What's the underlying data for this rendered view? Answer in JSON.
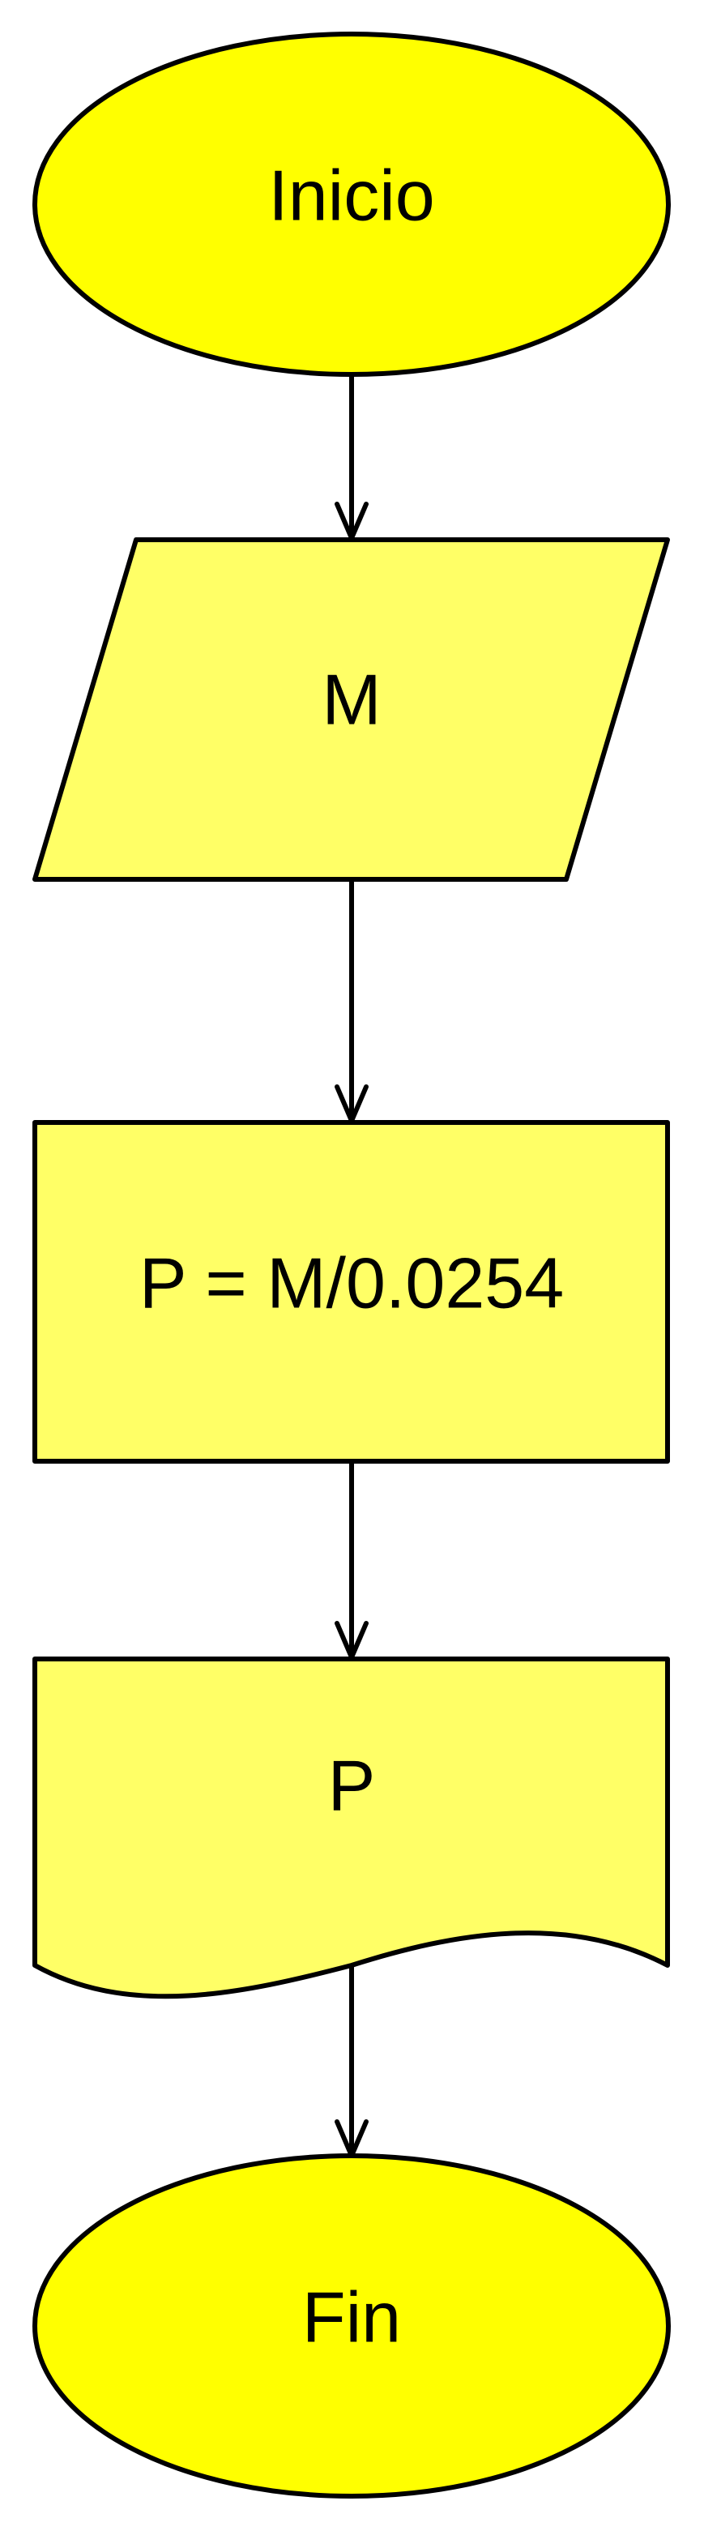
{
  "flowchart": {
    "colors": {
      "terminal_fill": "#FFFF00",
      "process_fill": "#FFFF66",
      "stroke": "#000000",
      "background": "#FFFFFF"
    },
    "nodes": [
      {
        "id": "start",
        "shape": "ellipse",
        "label": "Inicio"
      },
      {
        "id": "input",
        "shape": "parallelogram",
        "label": "M"
      },
      {
        "id": "process",
        "shape": "rectangle",
        "label": "P = M/0.0254"
      },
      {
        "id": "output",
        "shape": "document",
        "label": "P"
      },
      {
        "id": "end",
        "shape": "ellipse",
        "label": "Fin"
      }
    ],
    "edges": [
      {
        "from": "start",
        "to": "input"
      },
      {
        "from": "input",
        "to": "process"
      },
      {
        "from": "process",
        "to": "output"
      },
      {
        "from": "output",
        "to": "end"
      }
    ]
  }
}
